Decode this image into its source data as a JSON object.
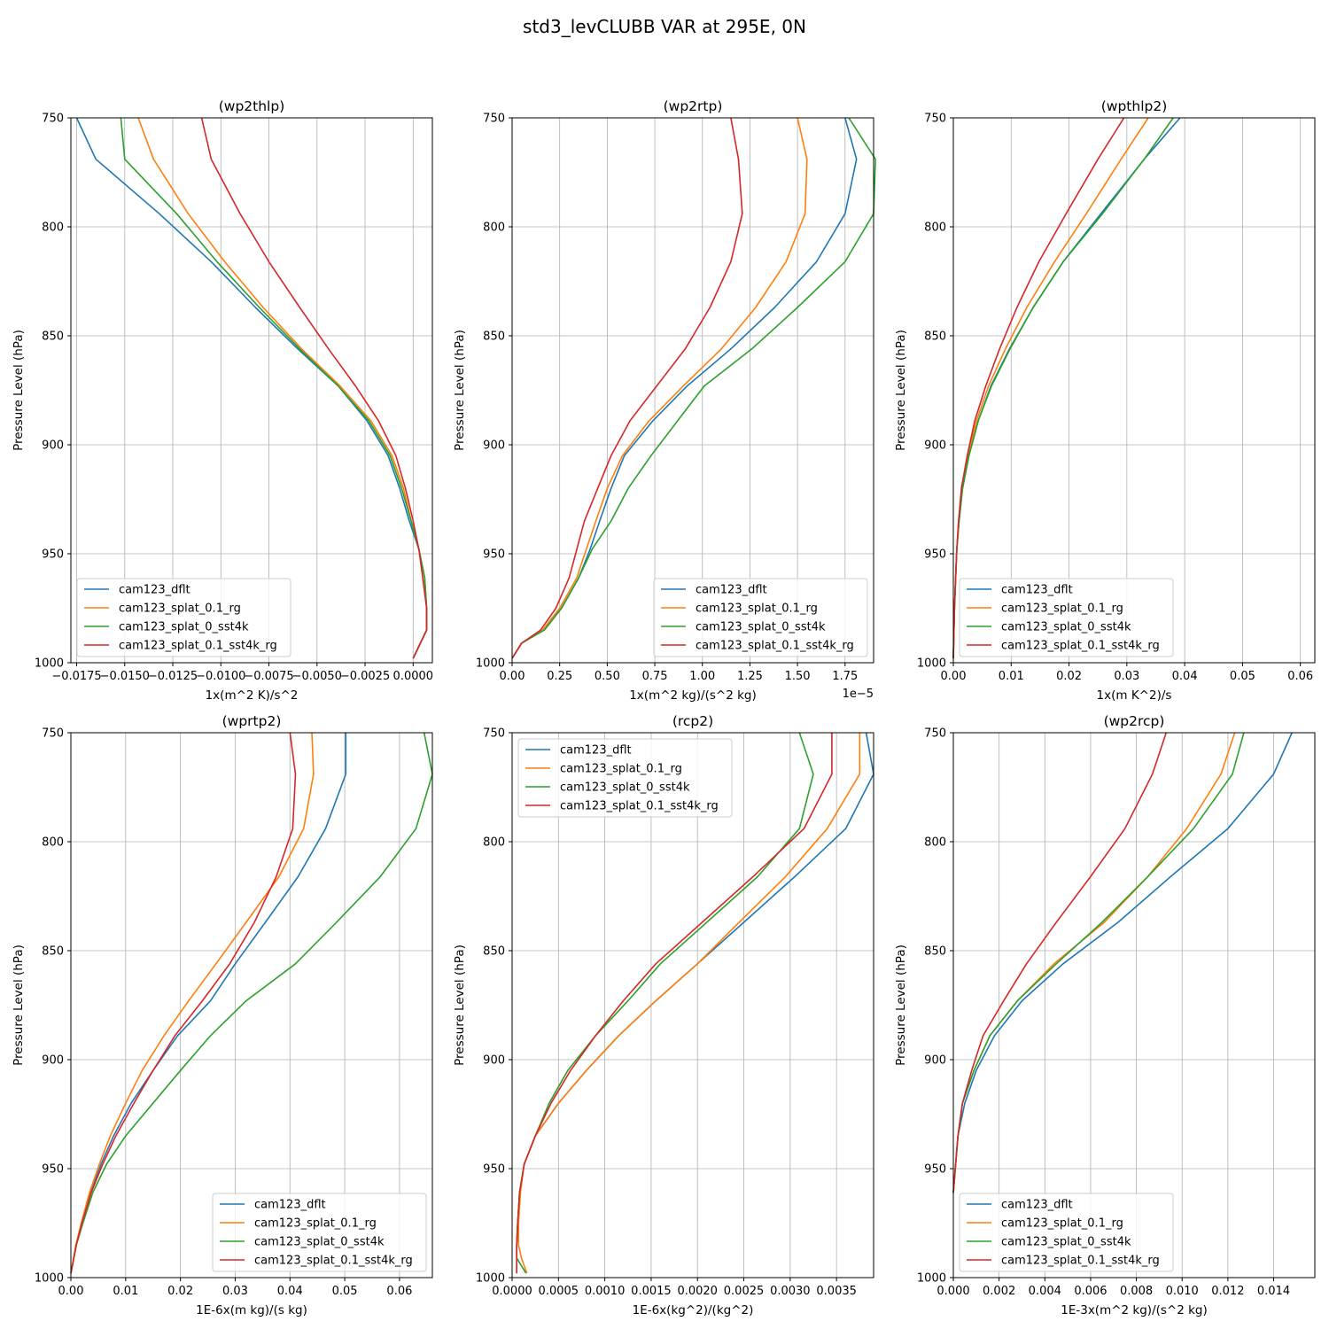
{
  "figure": {
    "title": "std3_levCLUBB VAR at 295E, 0N"
  },
  "chart_data": [
    {
      "type": "line",
      "title": "(wp2thlp)",
      "xlabel": "1x(m^2 K)/s^2",
      "ylabel": "Pressure Level (hPa)",
      "offset_text": "",
      "xlim": [
        -0.0178,
        0.001
      ],
      "ylim": [
        1000,
        750
      ],
      "xticks": [
        -0.0175,
        -0.015,
        -0.0125,
        -0.01,
        -0.0075,
        -0.005,
        -0.0025,
        0
      ],
      "xtick_labels": [
        "−0.0175",
        "−0.0150",
        "−0.0125",
        "−0.0100",
        "−0.0075",
        "−0.0050",
        "−0.0025",
        "0.0000"
      ],
      "yticks": [
        750,
        800,
        850,
        900,
        950,
        1000
      ],
      "grid": true,
      "legend_position": "lower-left",
      "y": [
        750,
        769,
        794,
        816,
        837,
        856,
        873,
        889,
        905,
        920,
        935,
        948,
        961,
        975,
        985,
        998
      ],
      "series": [
        {
          "name": "cam123_dflt",
          "color": "#1f77b4",
          "x": [
            -0.0175,
            -0.0165,
            -0.0132,
            -0.0105,
            -0.0082,
            -0.006,
            -0.0039,
            -0.0024,
            -0.0013,
            -0.0007,
            -0.0002,
            0.0003,
            0.0006,
            0.0007,
            0.0007,
            0.0
          ]
        },
        {
          "name": "cam123_splat_0.1_rg",
          "color": "#ff7f0e",
          "x": [
            -0.0143,
            -0.0135,
            -0.0117,
            -0.0098,
            -0.0078,
            -0.0058,
            -0.0038,
            -0.0022,
            -0.0011,
            -0.0005,
            -0.0001,
            0.0003,
            0.0006,
            0.0007,
            0.0007,
            0.0
          ]
        },
        {
          "name": "cam123_splat_0_sst4k",
          "color": "#2ca02c",
          "x": [
            -0.0152,
            -0.015,
            -0.0123,
            -0.0102,
            -0.008,
            -0.0059,
            -0.0039,
            -0.0023,
            -0.0012,
            -0.0006,
            -0.0001,
            0.0003,
            0.0006,
            0.0007,
            0.0007,
            0.0
          ]
        },
        {
          "name": "cam123_splat_0.1_sst4k_rg",
          "color": "#d62728",
          "x": [
            -0.011,
            -0.0105,
            -0.009,
            -0.0075,
            -0.0059,
            -0.0044,
            -0.003,
            -0.0018,
            -0.0009,
            -0.0004,
            0.0,
            0.0003,
            0.0005,
            0.0007,
            0.0007,
            0.0
          ]
        }
      ]
    },
    {
      "type": "line",
      "title": "(wp2rtp)",
      "xlabel": "1x(m^2 kg)/(s^2 kg)",
      "ylabel": "Pressure Level (hPa)",
      "offset_text": "1e−5",
      "xlim": [
        0,
        1.9
      ],
      "ylim": [
        1000,
        750
      ],
      "xticks": [
        0,
        0.25,
        0.5,
        0.75,
        1.0,
        1.25,
        1.5,
        1.75
      ],
      "xtick_labels": [
        "0.00",
        "0.25",
        "0.50",
        "0.75",
        "1.00",
        "1.25",
        "1.50",
        "1.75"
      ],
      "yticks": [
        750,
        800,
        850,
        900,
        950,
        1000
      ],
      "grid": true,
      "legend_position": "lower-right",
      "y": [
        750,
        769,
        794,
        816,
        837,
        856,
        873,
        889,
        905,
        920,
        935,
        948,
        961,
        975,
        985,
        991,
        998
      ],
      "series": [
        {
          "name": "cam123_dflt",
          "color": "#1f77b4",
          "x": [
            1.75,
            1.81,
            1.75,
            1.6,
            1.38,
            1.15,
            0.92,
            0.74,
            0.59,
            0.52,
            0.46,
            0.41,
            0.35,
            0.26,
            0.16,
            0.05,
            0.0
          ]
        },
        {
          "name": "cam123_splat_0.1_rg",
          "color": "#ff7f0e",
          "x": [
            1.5,
            1.55,
            1.54,
            1.44,
            1.28,
            1.1,
            0.9,
            0.72,
            0.58,
            0.5,
            0.44,
            0.39,
            0.34,
            0.25,
            0.16,
            0.05,
            0.0
          ]
        },
        {
          "name": "cam123_splat_0_sst4k",
          "color": "#2ca02c",
          "x": [
            1.77,
            1.91,
            1.9,
            1.75,
            1.5,
            1.26,
            1.01,
            0.87,
            0.73,
            0.61,
            0.52,
            0.42,
            0.35,
            0.26,
            0.17,
            0.05,
            0.0
          ]
        },
        {
          "name": "cam123_splat_0.1_sst4k_rg",
          "color": "#d62728",
          "x": [
            1.15,
            1.19,
            1.21,
            1.15,
            1.04,
            0.91,
            0.76,
            0.62,
            0.52,
            0.45,
            0.38,
            0.34,
            0.3,
            0.23,
            0.15,
            0.05,
            0.0
          ]
        }
      ]
    },
    {
      "type": "line",
      "title": "(wpthlp2)",
      "xlabel": "1x(m K^2)/s",
      "ylabel": "Pressure Level (hPa)",
      "offset_text": "",
      "xlim": [
        0,
        0.0625
      ],
      "ylim": [
        1000,
        750
      ],
      "xticks": [
        0,
        0.01,
        0.02,
        0.03,
        0.04,
        0.05,
        0.06
      ],
      "xtick_labels": [
        "0.00",
        "0.01",
        "0.02",
        "0.03",
        "0.04",
        "0.05",
        "0.06"
      ],
      "yticks": [
        750,
        800,
        850,
        900,
        950,
        1000
      ],
      "grid": true,
      "legend_position": "lower-left",
      "y": [
        750,
        769,
        794,
        816,
        837,
        856,
        873,
        889,
        905,
        920,
        935,
        948,
        961,
        975,
        985,
        998
      ],
      "series": [
        {
          "name": "cam123_dflt",
          "color": "#1f77b4",
          "x": [
            0.0392,
            0.033,
            0.0255,
            0.019,
            0.0138,
            0.0097,
            0.0065,
            0.0043,
            0.0027,
            0.0016,
            0.001,
            0.0006,
            0.0004,
            0.0002,
            0.0001,
            0.0
          ]
        },
        {
          "name": "cam123_splat_0.1_rg",
          "color": "#ff7f0e",
          "x": [
            0.0337,
            0.029,
            0.023,
            0.0175,
            0.0127,
            0.009,
            0.0061,
            0.004,
            0.0025,
            0.0015,
            0.0009,
            0.0006,
            0.0004,
            0.0002,
            0.0001,
            0.0
          ]
        },
        {
          "name": "cam123_splat_0_sst4k",
          "color": "#2ca02c",
          "x": [
            0.038,
            0.033,
            0.0258,
            0.019,
            0.0138,
            0.0098,
            0.0066,
            0.0043,
            0.0027,
            0.0016,
            0.001,
            0.0006,
            0.0004,
            0.0002,
            0.0001,
            0.0
          ]
        },
        {
          "name": "cam123_splat_0.1_sst4k_rg",
          "color": "#d62728",
          "x": [
            0.0295,
            0.025,
            0.0195,
            0.0148,
            0.011,
            0.008,
            0.0056,
            0.0037,
            0.0024,
            0.0014,
            0.0009,
            0.0006,
            0.0004,
            0.0002,
            0.0001,
            0.0
          ]
        }
      ]
    },
    {
      "type": "line",
      "title": "(wprtp2)",
      "xlabel": "1E-6x(m kg)/(s kg)",
      "ylabel": "Pressure Level (hPa)",
      "offset_text": "",
      "xlim": [
        0,
        0.066
      ],
      "ylim": [
        1000,
        750
      ],
      "xticks": [
        0,
        0.01,
        0.02,
        0.03,
        0.04,
        0.05,
        0.06
      ],
      "xtick_labels": [
        "0.00",
        "0.01",
        "0.02",
        "0.03",
        "0.04",
        "0.05",
        "0.06"
      ],
      "yticks": [
        750,
        800,
        850,
        900,
        950,
        1000
      ],
      "grid": true,
      "legend_position": "lower-right",
      "y": [
        750,
        769,
        794,
        816,
        837,
        856,
        873,
        889,
        905,
        920,
        935,
        948,
        961,
        975,
        985,
        998
      ],
      "series": [
        {
          "name": "cam123_dflt",
          "color": "#1f77b4",
          "x": [
            0.0502,
            0.0502,
            0.0465,
            0.0415,
            0.0355,
            0.03,
            0.0255,
            0.0195,
            0.015,
            0.011,
            0.0078,
            0.0055,
            0.0036,
            0.002,
            0.001,
            0.0
          ]
        },
        {
          "name": "cam123_splat_0.1_rg",
          "color": "#ff7f0e",
          "x": [
            0.044,
            0.0443,
            0.0425,
            0.038,
            0.032,
            0.0265,
            0.0215,
            0.017,
            0.013,
            0.01,
            0.0072,
            0.0052,
            0.0034,
            0.0019,
            0.0009,
            0.0
          ]
        },
        {
          "name": "cam123_splat_0_sst4k",
          "color": "#2ca02c",
          "x": [
            0.0645,
            0.066,
            0.063,
            0.0565,
            0.0485,
            0.041,
            0.032,
            0.0255,
            0.02,
            0.015,
            0.01,
            0.0065,
            0.004,
            0.0022,
            0.001,
            0.0
          ]
        },
        {
          "name": "cam123_splat_0.1_sst4k_rg",
          "color": "#d62728",
          "x": [
            0.04,
            0.041,
            0.0405,
            0.0375,
            0.0335,
            0.029,
            0.024,
            0.019,
            0.015,
            0.0115,
            0.0082,
            0.0058,
            0.0037,
            0.002,
            0.001,
            0.0
          ]
        }
      ]
    },
    {
      "type": "line",
      "title": "(rcp2)",
      "xlabel": "1E-6x(kg^2)/(kg^2)",
      "ylabel": "Pressure Level (hPa)",
      "offset_text": "",
      "xlim": [
        0,
        0.0039
      ],
      "ylim": [
        1000,
        750
      ],
      "xticks": [
        0,
        0.0005,
        0.001,
        0.0015,
        0.002,
        0.0025,
        0.003,
        0.0035
      ],
      "xtick_labels": [
        "0.0000",
        "0.0005",
        "0.0010",
        "0.0015",
        "0.0020",
        "0.0025",
        "0.0030",
        "0.0035"
      ],
      "yticks": [
        750,
        800,
        850,
        900,
        950,
        1000
      ],
      "grid": true,
      "legend_position": "top-left",
      "y": [
        750,
        769,
        794,
        816,
        837,
        856,
        873,
        889,
        905,
        920,
        935,
        948,
        961,
        975,
        985,
        991,
        998
      ],
      "series": [
        {
          "name": "cam123_dflt",
          "color": "#1f77b4",
          "x": [
            0.00382,
            0.0039,
            0.0036,
            0.00305,
            0.0025,
            0.002,
            0.00155,
            0.00115,
            0.0008,
            0.0005,
            0.00025,
            0.00013,
            8e-05,
            6e-05,
            5e-05,
            5e-05,
            5e-05
          ]
        },
        {
          "name": "cam123_splat_0.1_rg",
          "color": "#ff7f0e",
          "x": [
            0.00375,
            0.00375,
            0.0034,
            0.00295,
            0.00245,
            0.002,
            0.00155,
            0.00115,
            0.0008,
            0.0005,
            0.00025,
            0.00013,
            9e-05,
            7e-05,
            7e-05,
            0.0001,
            0.00016
          ]
        },
        {
          "name": "cam123_splat_0_sst4k",
          "color": "#2ca02c",
          "x": [
            0.0031,
            0.00325,
            0.0031,
            0.00265,
            0.0021,
            0.0016,
            0.00125,
            0.0009,
            0.0006,
            0.0004,
            0.00025,
            0.00013,
            8e-05,
            6e-05,
            5e-05,
            5e-05,
            0.00015
          ]
        },
        {
          "name": "cam123_splat_0.1_sst4k_rg",
          "color": "#d62728",
          "x": [
            0.00345,
            0.00345,
            0.00315,
            0.0026,
            0.00205,
            0.00155,
            0.0012,
            0.0009,
            0.00063,
            0.00042,
            0.00025,
            0.00013,
            8e-05,
            6e-05,
            5e-05,
            5e-05,
            5e-05
          ]
        }
      ]
    },
    {
      "type": "line",
      "title": "(wp2rcp)",
      "xlabel": "1E-3x(m^2 kg)/(s^2 kg)",
      "ylabel": "Pressure Level (hPa)",
      "offset_text": "",
      "xlim": [
        0,
        0.0158
      ],
      "ylim": [
        1000,
        750
      ],
      "xticks": [
        0,
        0.002,
        0.004,
        0.006,
        0.008,
        0.01,
        0.012,
        0.014
      ],
      "xtick_labels": [
        "0.000",
        "0.002",
        "0.004",
        "0.006",
        "0.008",
        "0.010",
        "0.012",
        "0.014"
      ],
      "yticks": [
        750,
        800,
        850,
        900,
        950,
        1000
      ],
      "grid": true,
      "legend_position": "lower-left",
      "y": [
        750,
        769,
        794,
        816,
        837,
        856,
        873,
        889,
        905,
        920,
        935,
        948,
        961
      ],
      "series": [
        {
          "name": "cam123_dflt",
          "color": "#1f77b4",
          "x": [
            0.0148,
            0.014,
            0.012,
            0.0095,
            0.0072,
            0.0048,
            0.003,
            0.0018,
            0.001,
            0.0005,
            0.0002,
            0.0001,
            0.0
          ]
        },
        {
          "name": "cam123_splat_0.1_rg",
          "color": "#ff7f0e",
          "x": [
            0.0123,
            0.0117,
            0.0102,
            0.0085,
            0.0066,
            0.0044,
            0.0028,
            0.0016,
            0.0009,
            0.0004,
            0.0002,
            0.0001,
            0.0
          ]
        },
        {
          "name": "cam123_splat_0_sst4k",
          "color": "#2ca02c",
          "x": [
            0.0127,
            0.0122,
            0.0105,
            0.0085,
            0.0065,
            0.0045,
            0.0028,
            0.0016,
            0.0009,
            0.0004,
            0.0002,
            0.0001,
            0.0
          ]
        },
        {
          "name": "cam123_splat_0.1_sst4k_rg",
          "color": "#d62728",
          "x": [
            0.0093,
            0.0087,
            0.0075,
            0.006,
            0.0045,
            0.0032,
            0.0022,
            0.0013,
            0.0008,
            0.0004,
            0.0002,
            0.0001,
            0.0
          ]
        }
      ]
    }
  ]
}
